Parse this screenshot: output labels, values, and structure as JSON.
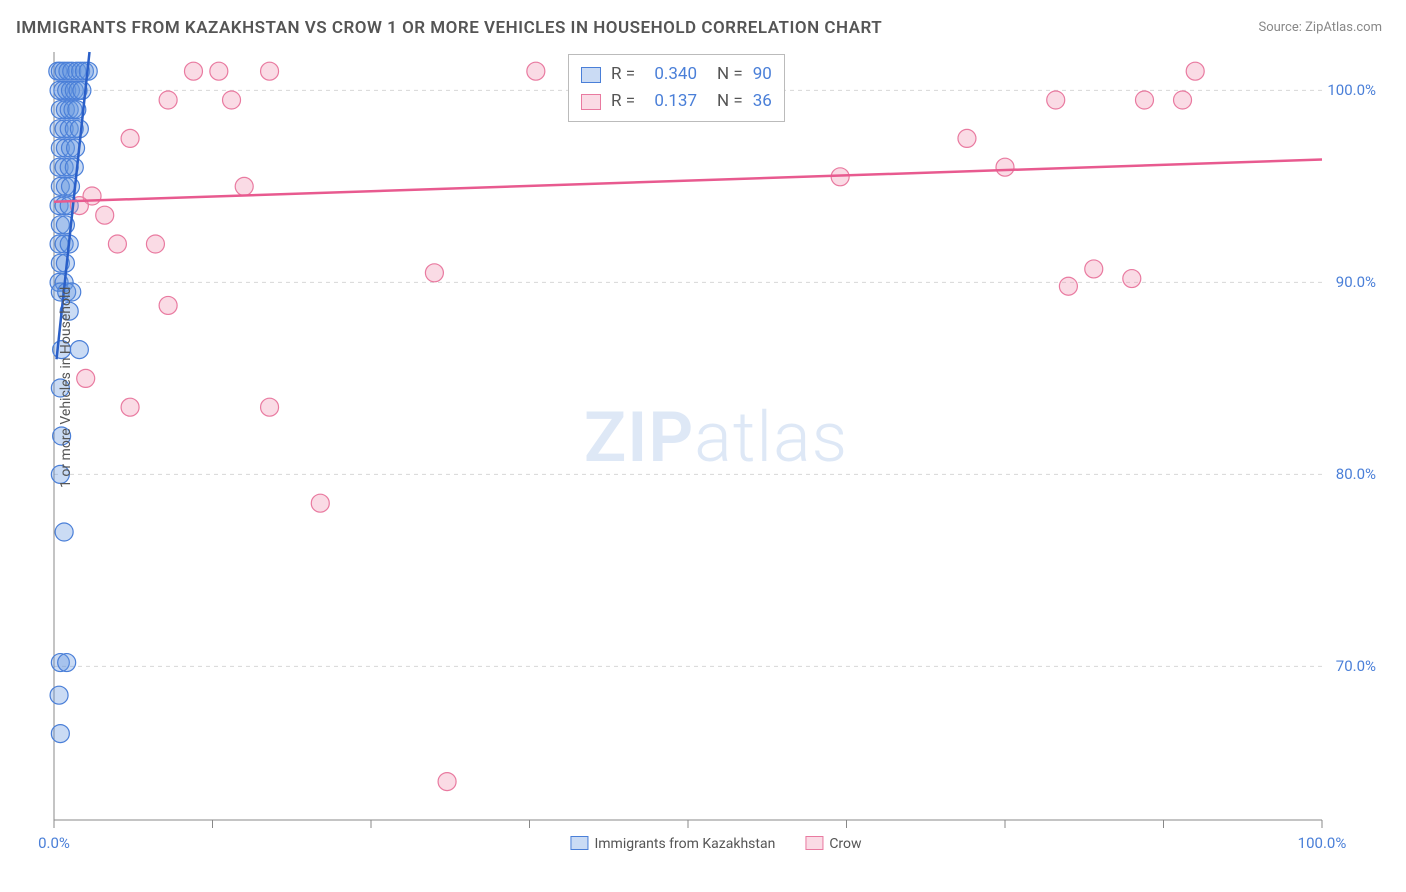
{
  "title": "IMMIGRANTS FROM KAZAKHSTAN VS CROW 1 OR MORE VEHICLES IN HOUSEHOLD CORRELATION CHART",
  "source": "Source: ZipAtlas.com",
  "ylabel": "1 or more Vehicles in Household",
  "watermark_a": "ZIP",
  "watermark_b": "atlas",
  "chart": {
    "type": "scatter",
    "background_color": "#ffffff",
    "grid_color": "#d8d8d8",
    "axis_color": "#888888",
    "tick_color": "#4a7fd8",
    "label_color": "#555555",
    "title_fontsize": 17,
    "label_fontsize": 14,
    "tick_fontsize": 15,
    "xlim": [
      0,
      100
    ],
    "ylim": [
      62,
      102
    ],
    "ytick_positions": [
      70,
      80,
      90,
      100
    ],
    "ytick_labels": [
      "70.0%",
      "80.0%",
      "90.0%",
      "100.0%"
    ],
    "xtick_positions": [
      0,
      50,
      100
    ],
    "xtick_labels": [
      "0.0%",
      "",
      "100.0%"
    ],
    "xtick_minor": [
      0,
      12.5,
      25,
      37.5,
      50,
      62.5,
      75,
      87.5,
      100
    ],
    "marker_radius": 9,
    "marker_opacity": 0.45,
    "line_width": 2
  },
  "series": [
    {
      "name": "Immigrants from Kazakhstan",
      "color": "#6699e0",
      "fill": "rgba(102,153,224,0.35)",
      "stroke": "#4a7fd8",
      "trend": {
        "x1": 0.2,
        "y1": 86,
        "x2": 2.8,
        "y2": 102,
        "color": "#2a5fc8"
      },
      "points": [
        [
          0.3,
          101
        ],
        [
          0.5,
          101
        ],
        [
          0.8,
          101
        ],
        [
          1.1,
          101
        ],
        [
          1.4,
          101
        ],
        [
          1.8,
          101
        ],
        [
          2.1,
          101
        ],
        [
          2.4,
          101
        ],
        [
          2.7,
          101
        ],
        [
          0.4,
          100
        ],
        [
          0.7,
          100
        ],
        [
          1.0,
          100
        ],
        [
          1.3,
          100
        ],
        [
          1.6,
          100
        ],
        [
          1.9,
          100
        ],
        [
          2.2,
          100
        ],
        [
          0.5,
          99
        ],
        [
          0.9,
          99
        ],
        [
          1.2,
          99
        ],
        [
          1.5,
          99
        ],
        [
          1.8,
          99
        ],
        [
          0.4,
          98
        ],
        [
          0.8,
          98
        ],
        [
          1.2,
          98
        ],
        [
          1.6,
          98
        ],
        [
          2.0,
          98
        ],
        [
          0.5,
          97
        ],
        [
          0.9,
          97
        ],
        [
          1.3,
          97
        ],
        [
          1.7,
          97
        ],
        [
          0.4,
          96
        ],
        [
          0.8,
          96
        ],
        [
          1.2,
          96
        ],
        [
          1.6,
          96
        ],
        [
          0.5,
          95
        ],
        [
          0.9,
          95
        ],
        [
          1.3,
          95
        ],
        [
          0.4,
          94
        ],
        [
          0.8,
          94
        ],
        [
          1.2,
          94
        ],
        [
          0.5,
          93
        ],
        [
          0.9,
          93
        ],
        [
          0.4,
          92
        ],
        [
          0.8,
          92
        ],
        [
          1.2,
          92
        ],
        [
          0.5,
          91
        ],
        [
          0.9,
          91
        ],
        [
          0.4,
          90
        ],
        [
          0.8,
          90
        ],
        [
          0.5,
          89.5
        ],
        [
          1.0,
          89.5
        ],
        [
          1.4,
          89.5
        ],
        [
          1.2,
          88.5
        ],
        [
          0.6,
          86.5
        ],
        [
          2.0,
          86.5
        ],
        [
          0.5,
          84.5
        ],
        [
          0.6,
          82
        ],
        [
          0.5,
          80
        ],
        [
          0.8,
          77
        ],
        [
          0.5,
          70.2
        ],
        [
          1.0,
          70.2
        ],
        [
          0.4,
          68.5
        ],
        [
          0.5,
          66.5
        ]
      ]
    },
    {
      "name": "Crow",
      "color": "#f199b5",
      "fill": "rgba(241,153,181,0.35)",
      "stroke": "#e97aa0",
      "trend": {
        "x1": 0,
        "y1": 94.2,
        "x2": 100,
        "y2": 96.4,
        "color": "#e85a8f"
      },
      "points": [
        [
          11,
          101
        ],
        [
          13,
          101
        ],
        [
          17,
          101
        ],
        [
          38,
          101
        ],
        [
          90,
          101
        ],
        [
          9,
          99.5
        ],
        [
          14,
          99.5
        ],
        [
          79,
          99.5
        ],
        [
          86,
          99.5
        ],
        [
          89,
          99.5
        ],
        [
          6,
          97.5
        ],
        [
          72,
          97.5
        ],
        [
          15,
          95
        ],
        [
          62,
          95.5
        ],
        [
          75,
          96
        ],
        [
          3,
          94.5
        ],
        [
          4,
          93.5
        ],
        [
          2,
          94
        ],
        [
          5,
          92
        ],
        [
          8,
          92
        ],
        [
          30,
          90.5
        ],
        [
          82,
          90.7
        ],
        [
          85,
          90.2
        ],
        [
          80,
          89.8
        ],
        [
          9,
          88.8
        ],
        [
          2.5,
          85
        ],
        [
          6,
          83.5
        ],
        [
          17,
          83.5
        ],
        [
          21,
          78.5
        ],
        [
          31,
          64
        ]
      ]
    }
  ],
  "stats": {
    "rows": [
      {
        "swatch_fill": "rgba(102,153,224,0.35)",
        "swatch_stroke": "#4a7fd8",
        "r_label": "R =",
        "r": "0.340",
        "n_label": "N =",
        "n": "90"
      },
      {
        "swatch_fill": "rgba(241,153,181,0.35)",
        "swatch_stroke": "#e97aa0",
        "r_label": "R =",
        "r": "0.137",
        "n_label": "N =",
        "n": "36"
      }
    ]
  },
  "legend": [
    {
      "label": "Immigrants from Kazakhstan",
      "fill": "rgba(102,153,224,0.35)",
      "stroke": "#4a7fd8"
    },
    {
      "label": "Crow",
      "fill": "rgba(241,153,181,0.35)",
      "stroke": "#e97aa0"
    }
  ]
}
